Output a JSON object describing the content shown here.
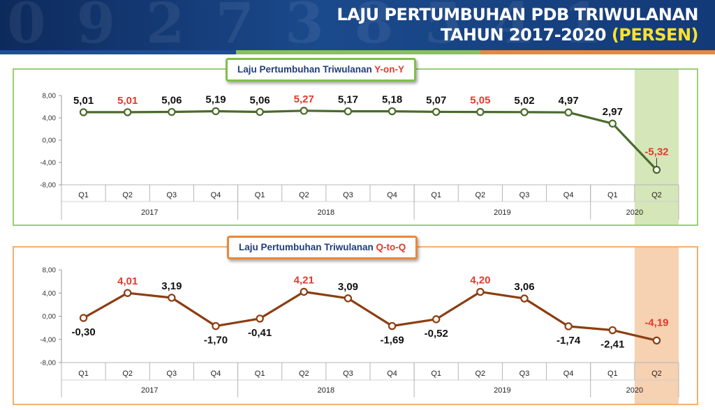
{
  "header": {
    "title_line1": "LAJU PERTUMBUHAN PDB TRIWULANAN",
    "title_line2": "TAHUN 2017-2020",
    "title_unit": "(PERSEN)"
  },
  "colors": {
    "header_bg": "#1b4a8c",
    "title_accent": "#ffe12d",
    "yoy_line": "#4a6b2b",
    "yoy_highlight": "#d5e6b8",
    "qtq_line": "#8b3e12",
    "qtq_highlight": "#f6d1b2",
    "red_label": "#e03a2b"
  },
  "chart_data": [
    {
      "type": "line",
      "title_prefix": "Laju Pertumbuhan Triwulanan ",
      "title_suffix": "Y-on-Y",
      "categories": [
        "Q1",
        "Q2",
        "Q3",
        "Q4",
        "Q1",
        "Q2",
        "Q3",
        "Q4",
        "Q1",
        "Q2",
        "Q3",
        "Q4",
        "Q1",
        "Q2"
      ],
      "years": [
        {
          "label": "2017",
          "span": 4
        },
        {
          "label": "2018",
          "span": 4
        },
        {
          "label": "2019",
          "span": 4
        },
        {
          "label": "2020",
          "span": 2
        }
      ],
      "values": [
        5.01,
        5.01,
        5.06,
        5.19,
        5.06,
        5.27,
        5.17,
        5.18,
        5.07,
        5.05,
        5.02,
        4.97,
        2.97,
        -5.32
      ],
      "value_labels": [
        "5,01",
        "5,01",
        "5,06",
        "5,19",
        "5,06",
        "5,27",
        "5,17",
        "5,18",
        "5,07",
        "5,05",
        "5,02",
        "4,97",
        "2,97",
        "-5,32"
      ],
      "red_indices": [
        1,
        5,
        9,
        13
      ],
      "label_below_indices": [],
      "ylim": [
        -8,
        8
      ],
      "yticks": [
        8,
        4,
        0,
        -4,
        -8
      ],
      "ytick_labels": [
        "8,00",
        "4,00",
        "0,00",
        "-4,00",
        "-8,00"
      ],
      "highlight_last": true,
      "grid": false
    },
    {
      "type": "line",
      "title_prefix": "Laju Pertumbuhan Triwulanan ",
      "title_suffix": "Q-to-Q",
      "categories": [
        "Q1",
        "Q2",
        "Q3",
        "Q4",
        "Q1",
        "Q2",
        "Q3",
        "Q4",
        "Q1",
        "Q2",
        "Q3",
        "Q4",
        "Q1",
        "Q2"
      ],
      "years": [
        {
          "label": "2017",
          "span": 4
        },
        {
          "label": "2018",
          "span": 4
        },
        {
          "label": "2019",
          "span": 4
        },
        {
          "label": "2020",
          "span": 2
        }
      ],
      "values": [
        -0.3,
        4.01,
        3.19,
        -1.7,
        -0.41,
        4.21,
        3.09,
        -1.69,
        -0.52,
        4.2,
        3.06,
        -1.74,
        -2.41,
        -4.19
      ],
      "value_labels": [
        "-0,30",
        "4,01",
        "3,19",
        "-1,70",
        "-0,41",
        "4,21",
        "3,09",
        "-1,69",
        "-0,52",
        "4,20",
        "3,06",
        "-1,74",
        "-2,41",
        "-4,19"
      ],
      "red_indices": [
        1,
        5,
        9,
        13
      ],
      "label_below_indices": [
        0,
        3,
        4,
        7,
        8,
        11,
        12
      ],
      "ylim": [
        -8,
        8
      ],
      "yticks": [
        8,
        4,
        0,
        -4,
        -8
      ],
      "ytick_labels": [
        "8,00",
        "4,00",
        "0,00",
        "-4,00",
        "-8,00"
      ],
      "highlight_last": true,
      "grid": false
    }
  ]
}
